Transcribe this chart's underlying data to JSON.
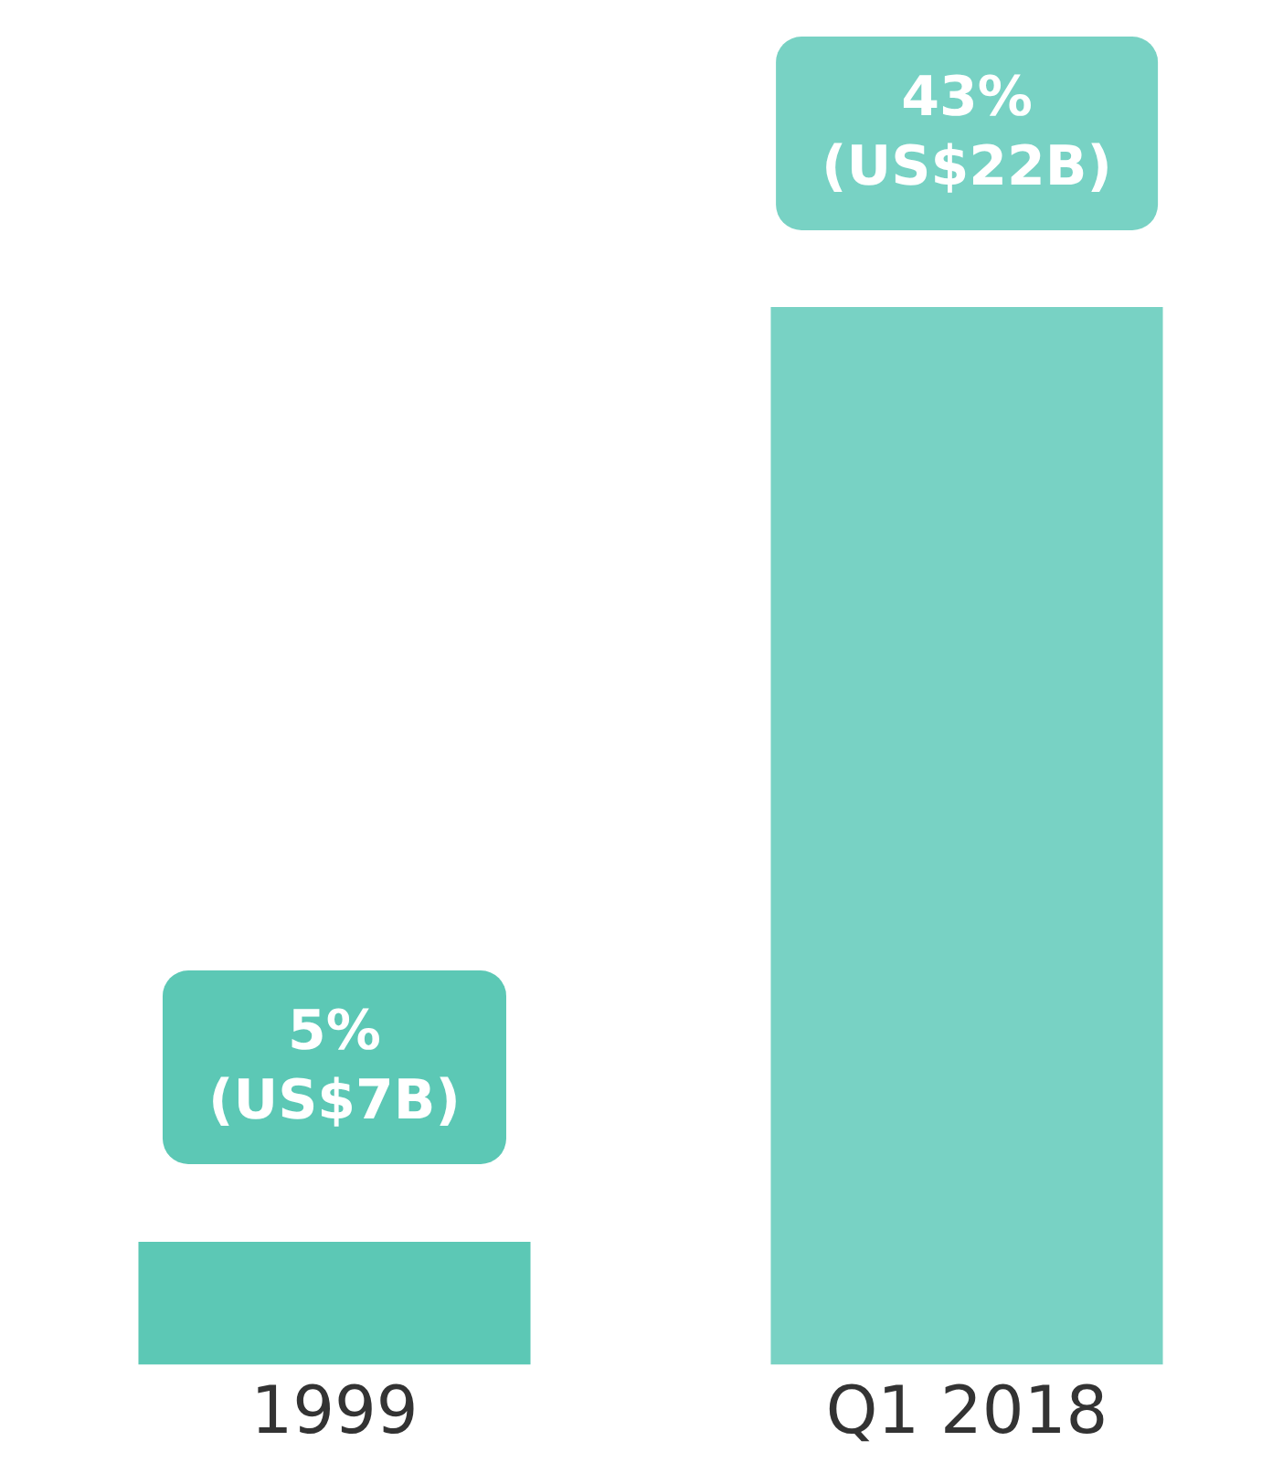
{
  "chart_data": {
    "type": "bar",
    "categories": [
      "1999",
      "Q1 2018"
    ],
    "values": [
      5,
      43
    ],
    "colors": [
      "#5cc8b5",
      "#78d2c4"
    ],
    "value_labels": [
      "5% (US$7B)",
      "43% (US$22B)"
    ],
    "grid": false,
    "legend": false,
    "tick_labels": "x"
  }
}
